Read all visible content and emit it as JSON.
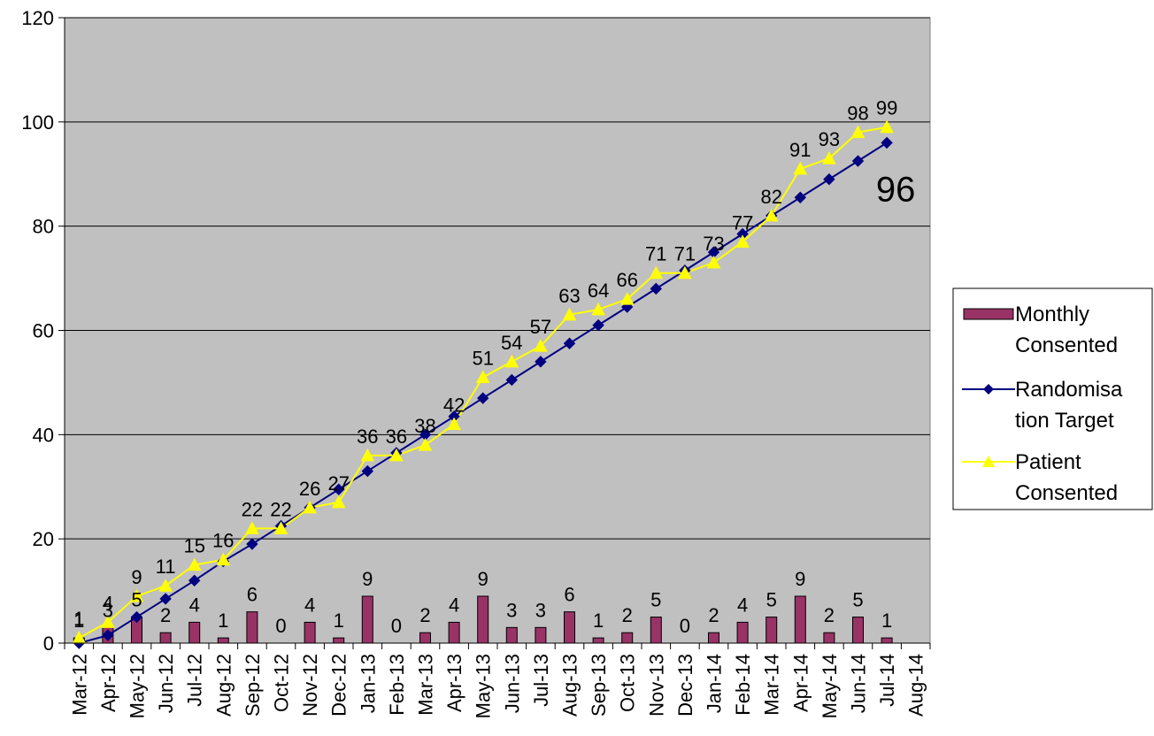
{
  "chart_data": {
    "type": "bar",
    "categories": [
      "Mar-12",
      "Apr-12",
      "May-12",
      "Jun-12",
      "Jul-12",
      "Aug-12",
      "Sep-12",
      "Oct-12",
      "Nov-12",
      "Dec-12",
      "Jan-13",
      "Feb-13",
      "Mar-13",
      "Apr-13",
      "May-13",
      "Jun-13",
      "Jul-13",
      "Aug-13",
      "Sep-13",
      "Oct-13",
      "Nov-13",
      "Dec-13",
      "Jan-14",
      "Feb-14",
      "Mar-14",
      "Apr-14",
      "May-14",
      "Jun-14",
      "Jul-14",
      "Aug-14"
    ],
    "ylim": [
      0,
      120
    ],
    "yticks": [
      0,
      20,
      40,
      60,
      80,
      100,
      120
    ],
    "grid": true,
    "legend_position": "right",
    "plot_background": "#c0c0c0",
    "series": [
      {
        "name": "Monthly Consented",
        "type": "bar",
        "color": "#993366",
        "values": [
          1,
          3,
          5,
          2,
          4,
          1,
          6,
          0,
          4,
          1,
          9,
          0,
          2,
          4,
          9,
          3,
          3,
          6,
          1,
          2,
          5,
          0,
          2,
          4,
          5,
          9,
          2,
          5,
          1,
          null
        ],
        "labels": [
          "1",
          "3",
          "5",
          "2",
          "4",
          "1",
          "6",
          "0",
          "4",
          "1",
          "9",
          "0",
          "2",
          "4",
          "9",
          "3",
          "3",
          "6",
          "1",
          "2",
          "5",
          "0",
          "2",
          "4",
          "5",
          "9",
          "2",
          "5",
          "1",
          ""
        ]
      },
      {
        "name": "Randomisation Target",
        "type": "line",
        "color": "#000080",
        "marker": "diamond",
        "values": [
          0,
          1.5,
          5,
          8.5,
          12,
          15.7,
          19,
          22.5,
          26,
          29.5,
          33,
          36.5,
          40,
          43.5,
          47,
          50.5,
          54,
          57.5,
          61,
          64.5,
          68,
          71.5,
          75,
          78.5,
          82,
          85.5,
          89,
          92.5,
          96,
          null
        ]
      },
      {
        "name": "Patient Consented",
        "type": "line",
        "color": "#ffff00",
        "marker": "triangle",
        "values": [
          1,
          4,
          9,
          11,
          15,
          16,
          22,
          22,
          26,
          27,
          36,
          36,
          38,
          42,
          51,
          54,
          57,
          63,
          64,
          66,
          71,
          71,
          73,
          77,
          82,
          91,
          93,
          98,
          99,
          null
        ],
        "labels": [
          "1",
          "4",
          "9",
          "11",
          "15",
          "16",
          "22",
          "22",
          "26",
          "27",
          "36",
          "36",
          "38",
          "42",
          "51",
          "54",
          "57",
          "63",
          "64",
          "66",
          "71",
          "71",
          "73",
          "77",
          "82",
          "91",
          "93",
          "98",
          "99",
          ""
        ]
      }
    ],
    "annotation": "96"
  },
  "legend": {
    "items": [
      {
        "lines": [
          "Monthly",
          "Consented"
        ]
      },
      {
        "lines": [
          "Randomisa",
          "tion Target"
        ]
      },
      {
        "lines": [
          "Patient",
          "Consented"
        ]
      }
    ]
  }
}
